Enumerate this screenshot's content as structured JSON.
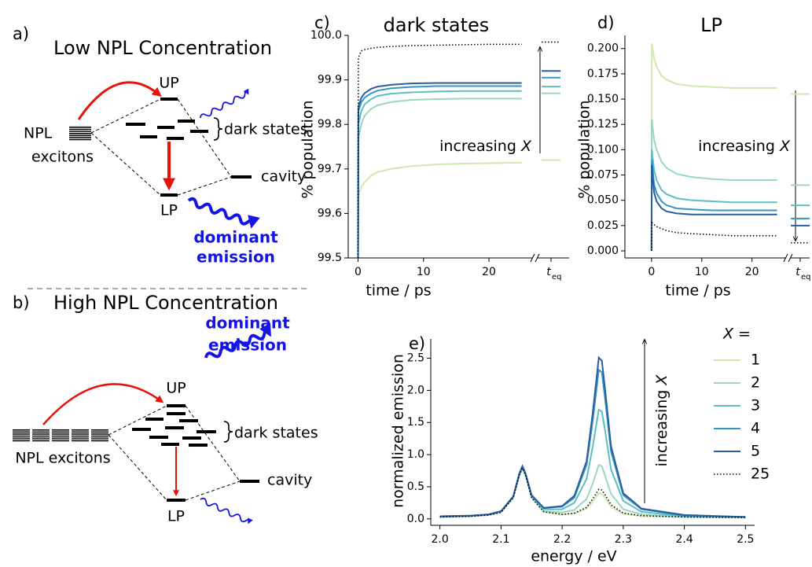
{
  "diagrams": [
    {
      "label": "a)",
      "title": "Low NPL Concentration",
      "upper": "UP",
      "lower": "LP",
      "source": [
        "NPL",
        "excitons"
      ],
      "dark": "dark states",
      "cavity": "cavity",
      "emission": [
        "dominant",
        "emission"
      ]
    },
    {
      "label": "b)",
      "title": "High NPL Concentration",
      "upper": "UP",
      "lower": "LP",
      "source": [
        "NPL excitons"
      ],
      "dark": "dark states",
      "cavity": "cavity",
      "emission": [
        "dominant",
        "emission"
      ]
    }
  ],
  "chart_data": [
    {
      "type": "line",
      "label": "c)",
      "title": "dark states",
      "xlabel": "time / ps",
      "ylabel": "% population",
      "x": [
        0,
        0.05,
        0.5,
        1,
        2,
        3,
        5,
        8,
        12,
        16,
        20,
        25
      ],
      "xlim": [
        -1.5,
        26
      ],
      "xticks": [
        0,
        10,
        20
      ],
      "ylim": [
        99.5,
        100
      ],
      "yticks": [
        99.5,
        99.6,
        99.7,
        99.8,
        99.9,
        {
          "value": 100,
          "label": "100.0"
        }
      ],
      "teq_label": "t",
      "teq_sub": "eq",
      "annotation": "increasing",
      "annotation_var": "X",
      "series": [
        {
          "color": "#cfe8b0",
          "values": [
            99.5,
            99.64,
            99.66,
            99.67,
            99.685,
            99.693,
            99.7,
            99.706,
            99.71,
            99.712,
            99.713,
            99.714
          ],
          "teq": 99.72
        },
        {
          "color": "#9dd6c0",
          "values": [
            99.5,
            99.77,
            99.8,
            99.82,
            99.835,
            99.843,
            99.85,
            99.855,
            99.857,
            99.858,
            99.858,
            99.858
          ],
          "teq": 99.87
        },
        {
          "color": "#5cbec2",
          "values": [
            99.5,
            99.8,
            99.83,
            99.845,
            99.857,
            99.864,
            99.869,
            99.872,
            99.874,
            99.875,
            99.875,
            99.875
          ],
          "teq": 99.885
        },
        {
          "color": "#3496c4",
          "values": [
            99.5,
            99.83,
            99.85,
            99.86,
            99.87,
            99.876,
            99.881,
            99.884,
            99.886,
            99.886,
            99.886,
            99.886
          ],
          "teq": 99.905
        },
        {
          "color": "#2a5d9e",
          "values": [
            99.5,
            99.84,
            99.86,
            99.87,
            99.88,
            99.885,
            99.889,
            99.892,
            99.893,
            99.893,
            99.893,
            99.893
          ],
          "teq": 99.92
        },
        {
          "color": "#000000",
          "dash": "dotted",
          "values": [
            99.5,
            99.95,
            99.965,
            99.968,
            99.971,
            99.973,
            99.975,
            99.977,
            99.978,
            99.979,
            99.98,
            99.98
          ],
          "teq": 99.985
        }
      ]
    },
    {
      "type": "line",
      "label": "d)",
      "title": "LP",
      "xlabel": "time / ps",
      "ylabel": "% population",
      "x": [
        0,
        0.05,
        0.5,
        1,
        2,
        3,
        5,
        8,
        12,
        16,
        20,
        25
      ],
      "xlim": [
        -5.3,
        26
      ],
      "xticks": [
        0,
        10,
        20
      ],
      "ylim": [
        -0.007,
        0.213
      ],
      "yticks": [
        {
          "value": 0,
          "label": "0.000"
        },
        0.025,
        {
          "value": 0.05,
          "label": "0.050"
        },
        0.075,
        {
          "value": 0.1,
          "label": "0.100"
        },
        0.125,
        {
          "value": 0.15,
          "label": "0.150"
        },
        0.175,
        {
          "value": 0.2,
          "label": "0.200"
        }
      ],
      "teq_label": "t",
      "teq_sub": "eq",
      "annotation": "increasing",
      "annotation_var": "X",
      "series": [
        {
          "color": "#cfe8b0",
          "values": [
            0,
            0.205,
            0.19,
            0.182,
            0.173,
            0.169,
            0.165,
            0.163,
            0.162,
            0.161,
            0.161,
            0.161
          ],
          "teq": 0.155
        },
        {
          "color": "#9dd6c0",
          "values": [
            0,
            0.13,
            0.11,
            0.1,
            0.088,
            0.082,
            0.076,
            0.073,
            0.071,
            0.07,
            0.07,
            0.07
          ],
          "teq": 0.065
        },
        {
          "color": "#5cbec2",
          "values": [
            0,
            0.1,
            0.08,
            0.07,
            0.06,
            0.056,
            0.052,
            0.05,
            0.049,
            0.048,
            0.048,
            0.048
          ],
          "teq": 0.045
        },
        {
          "color": "#3496c4",
          "values": [
            0,
            0.09,
            0.066,
            0.057,
            0.049,
            0.045,
            0.042,
            0.041,
            0.04,
            0.04,
            0.04,
            0.04
          ],
          "teq": 0.032
        },
        {
          "color": "#2a5d9e",
          "values": [
            0,
            0.085,
            0.058,
            0.049,
            0.042,
            0.039,
            0.037,
            0.036,
            0.036,
            0.036,
            0.036,
            0.036
          ],
          "teq": 0.025
        },
        {
          "color": "#000000",
          "dash": "dotted",
          "values": [
            0,
            0.028,
            0.026,
            0.024,
            0.022,
            0.02,
            0.018,
            0.017,
            0.016,
            0.015,
            0.015,
            0.015
          ],
          "teq": 0.008
        }
      ]
    },
    {
      "type": "line",
      "label": "e)",
      "xlabel": "energy / eV",
      "ylabel": "normalized emission",
      "x": [
        2.0,
        2.05,
        2.08,
        2.1,
        2.12,
        2.13,
        2.135,
        2.14,
        2.15,
        2.17,
        2.2,
        2.22,
        2.24,
        2.25,
        2.26,
        2.265,
        2.27,
        2.28,
        2.3,
        2.33,
        2.4,
        2.5
      ],
      "xlim": [
        1.985,
        2.515
      ],
      "xticks": [
        {
          "value": 2,
          "label": "2.0"
        },
        2.1,
        2.2,
        2.3,
        2.4,
        2.5
      ],
      "ylim": [
        -0.1,
        2.8
      ],
      "yticks": [
        {
          "value": 0,
          "label": "0.0"
        },
        0.5,
        {
          "value": 1,
          "label": "1.0"
        },
        1.5,
        {
          "value": 2,
          "label": "2.0"
        },
        2.5
      ],
      "annotation": "increasing",
      "annotation_var": "X",
      "legend_title": "X =",
      "series": [
        {
          "name": "1",
          "color": "#cfe8b0",
          "values": [
            0.03,
            0.04,
            0.06,
            0.1,
            0.33,
            0.68,
            0.79,
            0.68,
            0.33,
            0.11,
            0.07,
            0.08,
            0.16,
            0.27,
            0.4,
            0.39,
            0.33,
            0.19,
            0.08,
            0.04,
            0.03,
            0.02
          ]
        },
        {
          "name": "2",
          "color": "#9dd6c0",
          "values": [
            0.03,
            0.04,
            0.06,
            0.11,
            0.33,
            0.68,
            0.79,
            0.68,
            0.34,
            0.12,
            0.1,
            0.14,
            0.31,
            0.55,
            0.84,
            0.82,
            0.68,
            0.39,
            0.15,
            0.07,
            0.03,
            0.03
          ]
        },
        {
          "name": "3",
          "color": "#5cbec2",
          "values": [
            0.03,
            0.05,
            0.07,
            0.12,
            0.34,
            0.7,
            0.81,
            0.7,
            0.35,
            0.15,
            0.15,
            0.25,
            0.62,
            1.12,
            1.7,
            1.67,
            1.39,
            0.77,
            0.28,
            0.11,
            0.04,
            0.03
          ]
        },
        {
          "name": "4",
          "color": "#3496c4",
          "values": [
            0.04,
            0.05,
            0.07,
            0.12,
            0.35,
            0.7,
            0.82,
            0.71,
            0.37,
            0.17,
            0.19,
            0.33,
            0.84,
            1.52,
            2.32,
            2.28,
            1.89,
            1.05,
            0.37,
            0.15,
            0.05,
            0.03
          ]
        },
        {
          "name": "5",
          "color": "#2a5d9e",
          "values": [
            0.04,
            0.05,
            0.07,
            0.12,
            0.35,
            0.71,
            0.82,
            0.71,
            0.37,
            0.17,
            0.2,
            0.36,
            0.9,
            1.64,
            2.51,
            2.46,
            2.04,
            1.13,
            0.4,
            0.16,
            0.06,
            0.03
          ]
        },
        {
          "name": "25",
          "color": "#000000",
          "dash": "dotted",
          "values": [
            0.03,
            0.04,
            0.06,
            0.1,
            0.33,
            0.68,
            0.79,
            0.68,
            0.33,
            0.11,
            0.07,
            0.09,
            0.18,
            0.31,
            0.46,
            0.45,
            0.38,
            0.22,
            0.09,
            0.05,
            0.03,
            0.02
          ]
        }
      ]
    }
  ]
}
